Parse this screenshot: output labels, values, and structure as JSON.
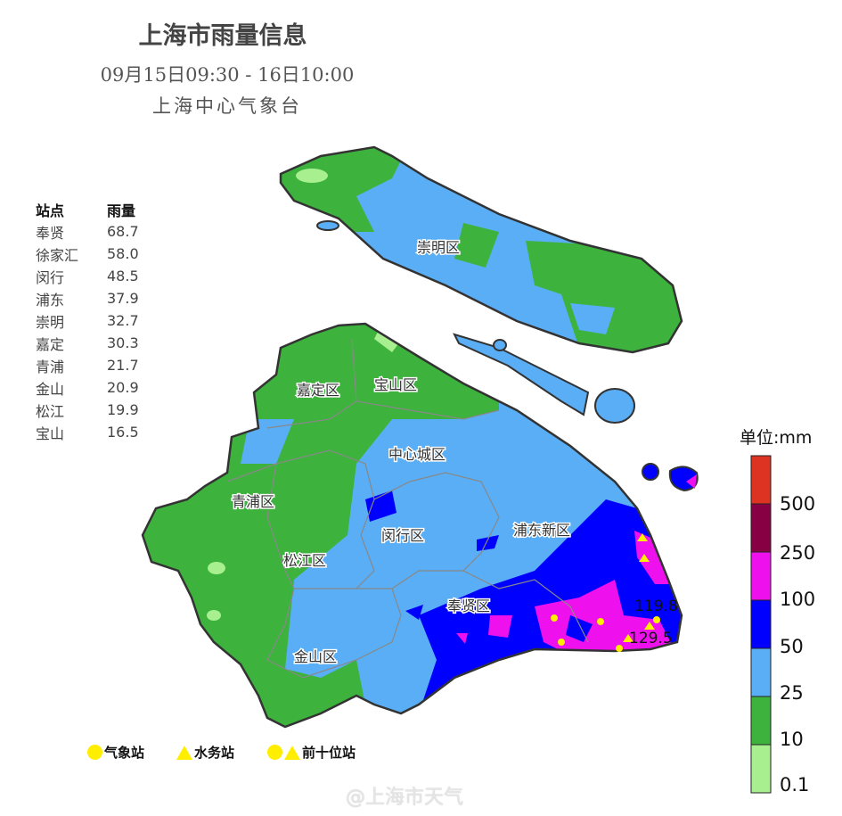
{
  "header": {
    "title": "上海市雨量信息",
    "period": "09月15日09:30 - 16日10:00",
    "issuer": "上海中心气象台"
  },
  "station_table": {
    "headers": [
      "站点",
      "雨量"
    ],
    "rows": [
      [
        "奉贤",
        "68.7"
      ],
      [
        "徐家汇",
        "58.0"
      ],
      [
        "闵行",
        "48.5"
      ],
      [
        "浦东",
        "37.9"
      ],
      [
        "崇明",
        "32.7"
      ],
      [
        "嘉定",
        "30.3"
      ],
      [
        "青浦",
        "21.7"
      ],
      [
        "金山",
        "20.9"
      ],
      [
        "松江",
        "19.9"
      ],
      [
        "宝山",
        "16.5"
      ]
    ]
  },
  "districts": [
    "崇明区",
    "嘉定区",
    "宝山区",
    "中心城区",
    "青浦区",
    "闵行区",
    "浦东新区",
    "松江区",
    "奉贤区",
    "金山区"
  ],
  "annotations": [
    "119.8",
    "129.5"
  ],
  "color_scale": {
    "unit_label": "单位:mm",
    "ticks": [
      "500",
      "250",
      "100",
      "50",
      "25",
      "10",
      "0.1"
    ],
    "colors": [
      "#dd3322",
      "#880044",
      "#ee11ee",
      "#0000ff",
      "#5aaef5",
      "#3db33d",
      "#a8ef90"
    ]
  },
  "legend": {
    "met_station": "气象站",
    "water_station": "水务站",
    "top_ten": "前十位站",
    "marker_color": "#ffee00"
  },
  "watermark": "@上海市天气"
}
